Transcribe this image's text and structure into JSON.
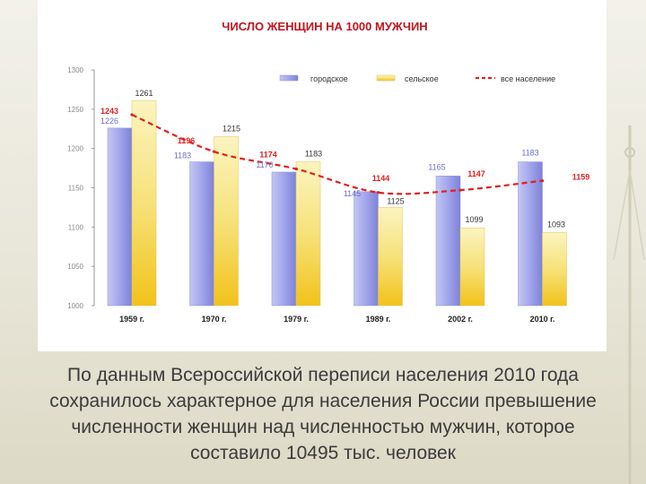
{
  "chart_data": {
    "type": "bar",
    "title": "ЧИСЛО ЖЕНЩИН НА 1000 МУЖЧИН",
    "categories": [
      "1959 г.",
      "1970 г.",
      "1979 г.",
      "1989 г.",
      "2002 г.",
      "2010 г."
    ],
    "series": [
      {
        "name": "городское",
        "kind": "bar",
        "values": [
          1226,
          1183,
          1170,
          1145,
          1165,
          1183
        ],
        "color": "#8a8ee0"
      },
      {
        "name": "сельское",
        "kind": "bar",
        "values": [
          1261,
          1215,
          1183,
          1125,
          1099,
          1093
        ],
        "color": "#f0d860"
      },
      {
        "name": "все население",
        "kind": "line",
        "style": "dashed",
        "values": [
          1243,
          1196,
          1174,
          1144,
          1147,
          1159
        ],
        "color": "#e02020"
      }
    ],
    "ylim": [
      1000,
      1300
    ],
    "yticks": [
      "1000",
      "1050",
      "1100",
      "1150",
      "1200",
      "1250",
      "1300"
    ],
    "legend_position": "top",
    "grid": false
  },
  "caption": {
    "lines": [
      "По данным Всероссийской переписи населения 2010 года",
      "сохранилось характерное для населения России превышение",
      "численности женщин над численностью мужчин, которое",
      "составило 10495 тыс. человек"
    ]
  }
}
